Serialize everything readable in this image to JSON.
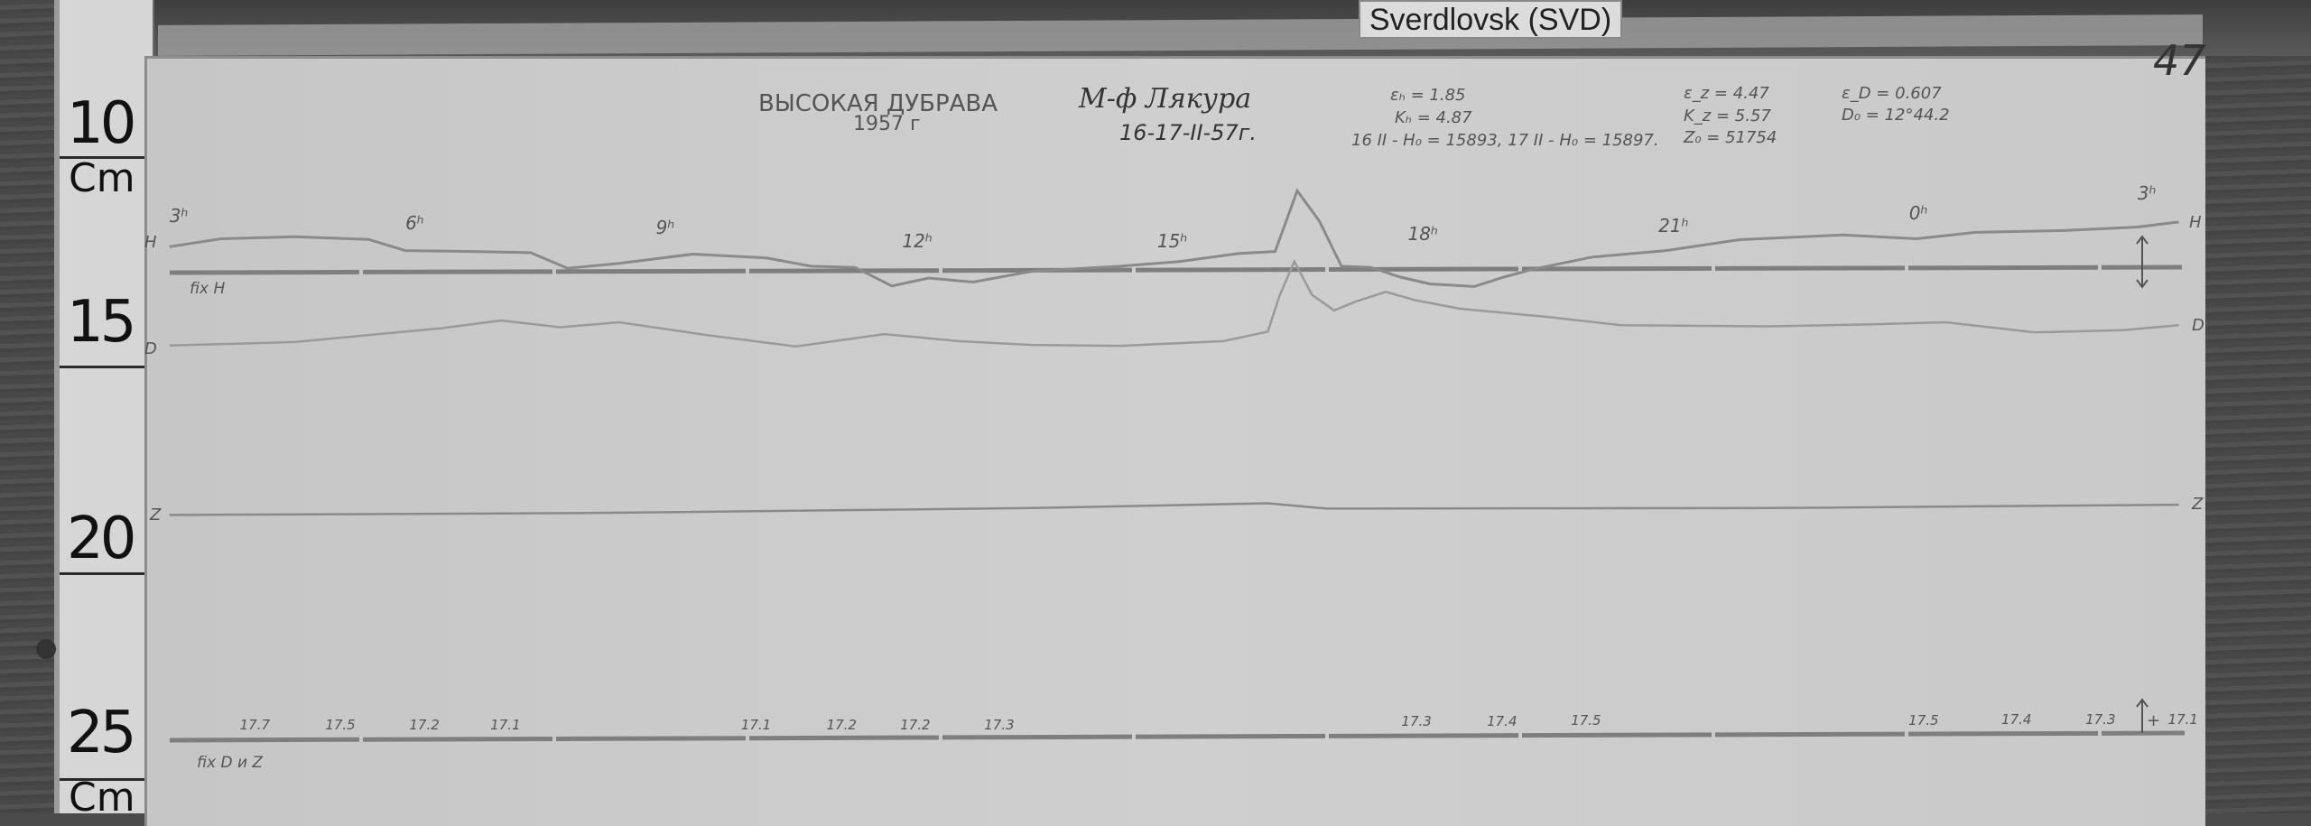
{
  "label": "Sverdlovsk (SVD)",
  "page_number": "47",
  "ruler": {
    "marks": [
      "10",
      "15",
      "20",
      "25"
    ],
    "unit": "Cm"
  },
  "header": {
    "station": "ВЫСОКАЯ ДУБРАВА",
    "year": "1957 г",
    "observer": "М-ф Лякура",
    "date": "16-17-II-57г.",
    "bH": "εₕ = 1.85",
    "KH": "Kₕ = 4.87",
    "H0": "16 II - H₀ = 15893, 17 II - H₀ = 15897.",
    "bZ": "ε_z = 4.47",
    "KZ": "K_z = 5.57",
    "Z0": "Z₀ = 51754",
    "bD": "ε_D = 0.607",
    "D0": "D₀ = 12°44.2"
  },
  "traces": {
    "H": "H",
    "D": "D",
    "Z": "Z"
  },
  "fix_H": "fix H",
  "fix_DZ": "fix D и Z",
  "hours": [
    "3ʰ",
    "6ʰ",
    "9ʰ",
    "12ʰ",
    "15ʰ",
    "18ʰ",
    "21ʰ",
    "0ʰ",
    "3ʰ"
  ],
  "temperatures": [
    "17.7",
    "17.5",
    "17.2",
    "17.1",
    "17.1",
    "17.2",
    "17.2",
    "17.3",
    "17.3",
    "17.4",
    "17.5",
    "17.5",
    "17.4",
    "17.3",
    "17.1"
  ],
  "plus": "+"
}
